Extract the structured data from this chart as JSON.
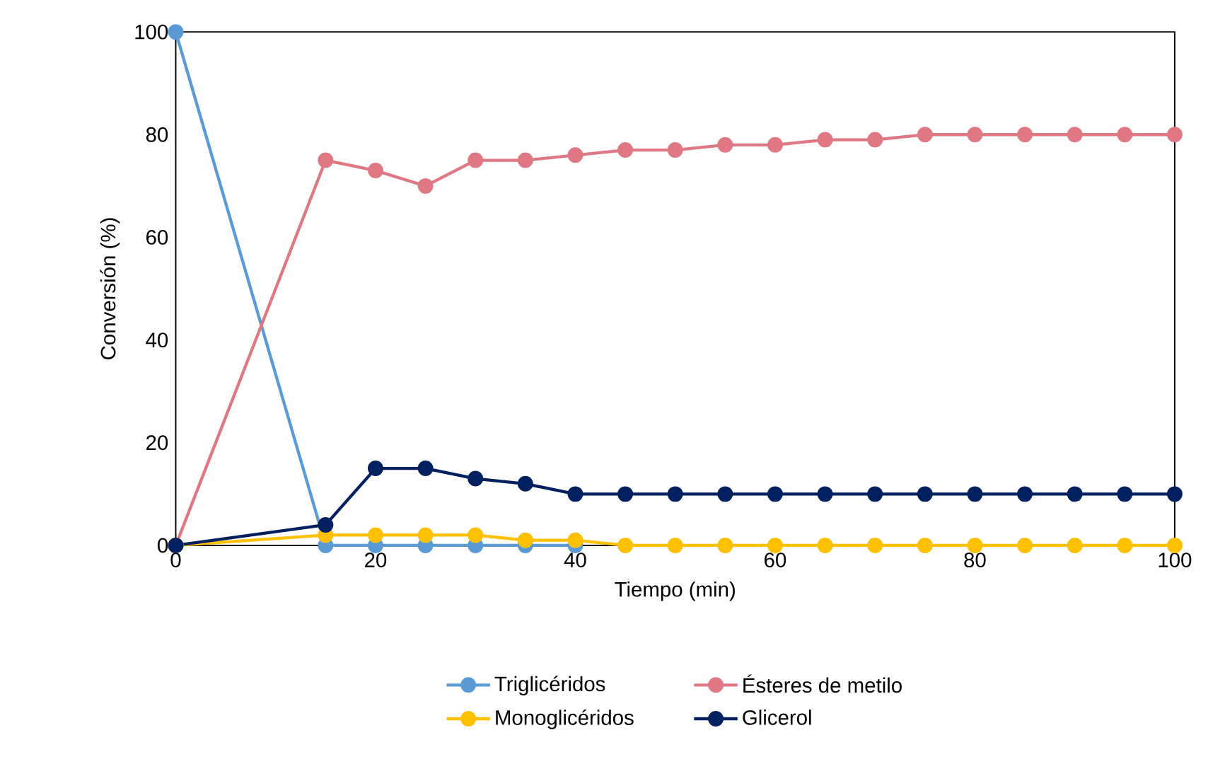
{
  "chart_data": {
    "type": "line",
    "xlabel": "Tiempo (min)",
    "ylabel": "Conversión (%)",
    "x": [
      0,
      15,
      20,
      25,
      30,
      35,
      40,
      45,
      50,
      55,
      60,
      65,
      70,
      75,
      80,
      85,
      90,
      95,
      100
    ],
    "series": [
      {
        "name": "Triglicéridos",
        "color": "#5b9bd5",
        "values": [
          100,
          0,
          0,
          0,
          0,
          0,
          0,
          null,
          null,
          null,
          null,
          null,
          null,
          null,
          null,
          null,
          null,
          null,
          null
        ]
      },
      {
        "name": "Ésteres de metilo",
        "color": "#e07884",
        "values": [
          0,
          75,
          73,
          70,
          75,
          75,
          76,
          77,
          77,
          78,
          78,
          79,
          79,
          80,
          80,
          80,
          80,
          80,
          80
        ]
      },
      {
        "name": "Monoglicéridos",
        "color": "#ffc000",
        "values": [
          0,
          2,
          2,
          2,
          2,
          1,
          1,
          0,
          0,
          0,
          0,
          0,
          0,
          0,
          0,
          0,
          0,
          0,
          0
        ]
      },
      {
        "name": "Glicerol",
        "color": "#002060",
        "values": [
          0,
          4,
          15,
          15,
          13,
          12,
          10,
          10,
          10,
          10,
          10,
          10,
          10,
          10,
          10,
          10,
          10,
          10,
          10
        ]
      }
    ],
    "xlim": [
      0,
      100
    ],
    "ylim": [
      0,
      100
    ],
    "xticks": [
      0,
      20,
      40,
      60,
      80,
      100
    ],
    "yticks": [
      0,
      20,
      40,
      60,
      80,
      100
    ],
    "legend": "bottom",
    "marker": "circle",
    "line_style": "solid"
  }
}
